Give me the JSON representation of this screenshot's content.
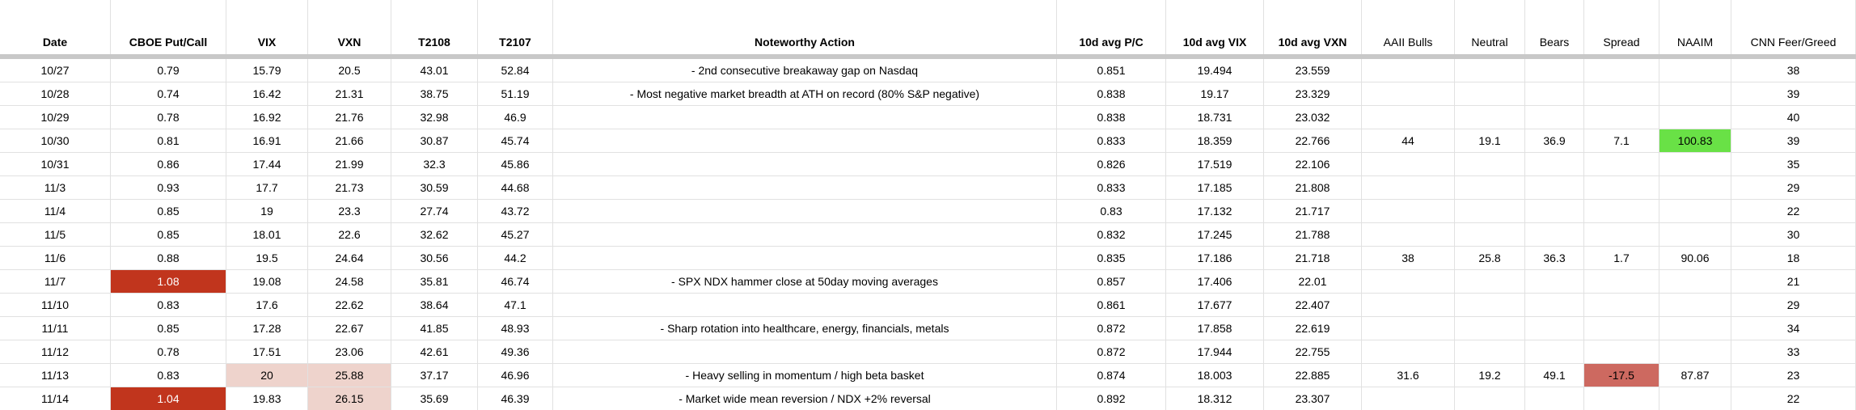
{
  "table": {
    "columns": [
      {
        "label": "Date",
        "bold": true
      },
      {
        "label": "CBOE Put/Call",
        "bold": true
      },
      {
        "label": "VIX",
        "bold": true
      },
      {
        "label": "VXN",
        "bold": true
      },
      {
        "label": "T2108",
        "bold": true
      },
      {
        "label": "T2107",
        "bold": true
      },
      {
        "label": "Noteworthy Action",
        "bold": true
      },
      {
        "label": "10d avg P/C",
        "bold": true
      },
      {
        "label": "10d avg VIX",
        "bold": true
      },
      {
        "label": "10d avg VXN",
        "bold": true
      },
      {
        "label": "AAII Bulls",
        "bold": false
      },
      {
        "label": "Neutral",
        "bold": false
      },
      {
        "label": "Bears",
        "bold": false
      },
      {
        "label": "Spread",
        "bold": false
      },
      {
        "label": "NAAIM",
        "bold": false
      },
      {
        "label": "CNN Feer/Greed",
        "bold": false
      }
    ],
    "rows": [
      {
        "cells": [
          "10/27",
          "0.79",
          "15.79",
          "20.5",
          "43.01",
          "52.84",
          "- 2nd consecutive breakaway gap on Nasdaq",
          "0.851",
          "19.494",
          "23.559",
          "",
          "",
          "",
          "",
          "",
          "38"
        ]
      },
      {
        "cells": [
          "10/28",
          "0.74",
          "16.42",
          "21.31",
          "38.75",
          "51.19",
          "- Most negative market breadth at ATH on record (80% S&P negative)",
          "0.838",
          "19.17",
          "23.329",
          "",
          "",
          "",
          "",
          "",
          "39"
        ]
      },
      {
        "cells": [
          "10/29",
          "0.78",
          "16.92",
          "21.76",
          "32.98",
          "46.9",
          "",
          "0.838",
          "18.731",
          "23.032",
          "",
          "",
          "",
          "",
          "",
          "40"
        ]
      },
      {
        "cells": [
          "10/30",
          "0.81",
          "16.91",
          "21.66",
          "30.87",
          "45.74",
          "",
          "0.833",
          "18.359",
          "22.766",
          "44",
          "19.1",
          "36.9",
          "7.1",
          "100.83",
          "39"
        ]
      },
      {
        "cells": [
          "10/31",
          "0.86",
          "17.44",
          "21.99",
          "32.3",
          "45.86",
          "",
          "0.826",
          "17.519",
          "22.106",
          "",
          "",
          "",
          "",
          "",
          "35"
        ]
      },
      {
        "cells": [
          "11/3",
          "0.93",
          "17.7",
          "21.73",
          "30.59",
          "44.68",
          "",
          "0.833",
          "17.185",
          "21.808",
          "",
          "",
          "",
          "",
          "",
          "29"
        ]
      },
      {
        "cells": [
          "11/4",
          "0.85",
          "19",
          "23.3",
          "27.74",
          "43.72",
          "",
          "0.83",
          "17.132",
          "21.717",
          "",
          "",
          "",
          "",
          "",
          "22"
        ]
      },
      {
        "cells": [
          "11/5",
          "0.85",
          "18.01",
          "22.6",
          "32.62",
          "45.27",
          "",
          "0.832",
          "17.245",
          "21.788",
          "",
          "",
          "",
          "",
          "",
          "30"
        ]
      },
      {
        "cells": [
          "11/6",
          "0.88",
          "19.5",
          "24.64",
          "30.56",
          "44.2",
          "",
          "0.835",
          "17.186",
          "21.718",
          "38",
          "25.8",
          "36.3",
          "1.7",
          "90.06",
          "18"
        ]
      },
      {
        "cells": [
          "11/7",
          "1.08",
          "19.08",
          "24.58",
          "35.81",
          "46.74",
          "- SPX NDX hammer close at 50day moving averages",
          "0.857",
          "17.406",
          "22.01",
          "",
          "",
          "",
          "",
          "",
          "21"
        ]
      },
      {
        "cells": [
          "11/10",
          "0.83",
          "17.6",
          "22.62",
          "38.64",
          "47.1",
          "",
          "0.861",
          "17.677",
          "22.407",
          "",
          "",
          "",
          "",
          "",
          "29"
        ]
      },
      {
        "cells": [
          "11/11",
          "0.85",
          "17.28",
          "22.67",
          "41.85",
          "48.93",
          "- Sharp rotation into healthcare, energy, financials, metals",
          "0.872",
          "17.858",
          "22.619",
          "",
          "",
          "",
          "",
          "",
          "34"
        ]
      },
      {
        "cells": [
          "11/12",
          "0.78",
          "17.51",
          "23.06",
          "42.61",
          "49.36",
          "",
          "0.872",
          "17.944",
          "22.755",
          "",
          "",
          "",
          "",
          "",
          "33"
        ]
      },
      {
        "cells": [
          "11/13",
          "0.83",
          "20",
          "25.88",
          "37.17",
          "46.96",
          "- Heavy selling in momentum / high beta basket",
          "0.874",
          "18.003",
          "22.885",
          "31.6",
          "19.2",
          "49.1",
          "-17.5",
          "87.87",
          "23"
        ]
      },
      {
        "cells": [
          "11/14",
          "1.04",
          "19.83",
          "26.15",
          "35.69",
          "46.39",
          "- Market wide mean reversion / NDX +2% reversal",
          "0.892",
          "18.312",
          "23.307",
          "",
          "",
          "",
          "",
          "",
          "22"
        ]
      }
    ],
    "highlights": [
      {
        "row": 3,
        "col": 14,
        "style": "green"
      },
      {
        "row": 9,
        "col": 1,
        "style": "dark_red"
      },
      {
        "row": 13,
        "col": 2,
        "style": "pink"
      },
      {
        "row": 13,
        "col": 3,
        "style": "pink"
      },
      {
        "row": 13,
        "col": 13,
        "style": "salmon"
      },
      {
        "row": 14,
        "col": 1,
        "style": "dark_red"
      },
      {
        "row": 14,
        "col": 3,
        "style": "pink"
      }
    ]
  },
  "colors": {
    "dark_red": "#c1351d",
    "dark_red_text": "#ffffff",
    "pink": "#eed3cc",
    "green": "#69e146",
    "salmon": "#cd6960",
    "gridline": "#e1e1e1",
    "freeze_bar": "#c8c8c8"
  }
}
